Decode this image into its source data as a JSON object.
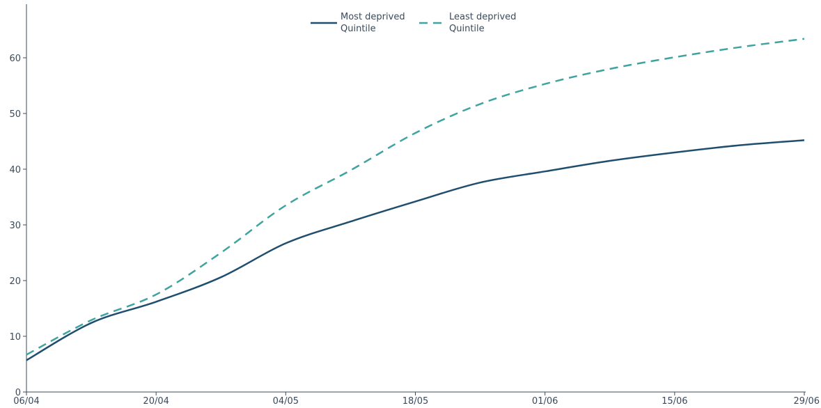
{
  "chart_data": {
    "type": "line",
    "title": "",
    "xlabel": "",
    "ylabel": "",
    "x": [
      "06/04",
      "13/04",
      "20/04",
      "27/04",
      "04/05",
      "11/05",
      "18/05",
      "25/05",
      "01/06",
      "08/06",
      "15/06",
      "22/06",
      "29/06"
    ],
    "x_tick_labels": [
      "06/04",
      "20/04",
      "04/05",
      "18/05",
      "01/06",
      "15/06",
      "29/06"
    ],
    "x_tick_positions": [
      "06/04",
      "20/04",
      "04/05",
      "18/05",
      "01/06",
      "15/06",
      "29/06"
    ],
    "ylim": [
      0,
      70
    ],
    "y_tick_labels": [
      "0",
      "10",
      "20",
      "30",
      "40",
      "50",
      "60"
    ],
    "y_ticks": [
      0,
      10,
      20,
      30,
      40,
      50,
      60
    ],
    "grid": false,
    "legend_position": "top-center",
    "series": [
      {
        "name": "Most deprived Quintile",
        "legend_lines": [
          "Most deprived",
          "Quintile"
        ],
        "style": "solid",
        "color": "#1f4e6e",
        "values": [
          5.7,
          12.4,
          16.2,
          20.6,
          26.7,
          30.6,
          34.2,
          37.6,
          39.6,
          41.5,
          43.0,
          44.3,
          45.2
        ]
      },
      {
        "name": "Least deprived Quintile",
        "legend_lines": [
          "Least deprived",
          "Quintile"
        ],
        "style": "dashed",
        "color": "#3fa39f",
        "values": [
          6.7,
          12.9,
          17.5,
          25.0,
          33.5,
          39.8,
          46.5,
          51.7,
          55.3,
          58.0,
          60.1,
          61.9,
          63.4
        ]
      }
    ]
  }
}
